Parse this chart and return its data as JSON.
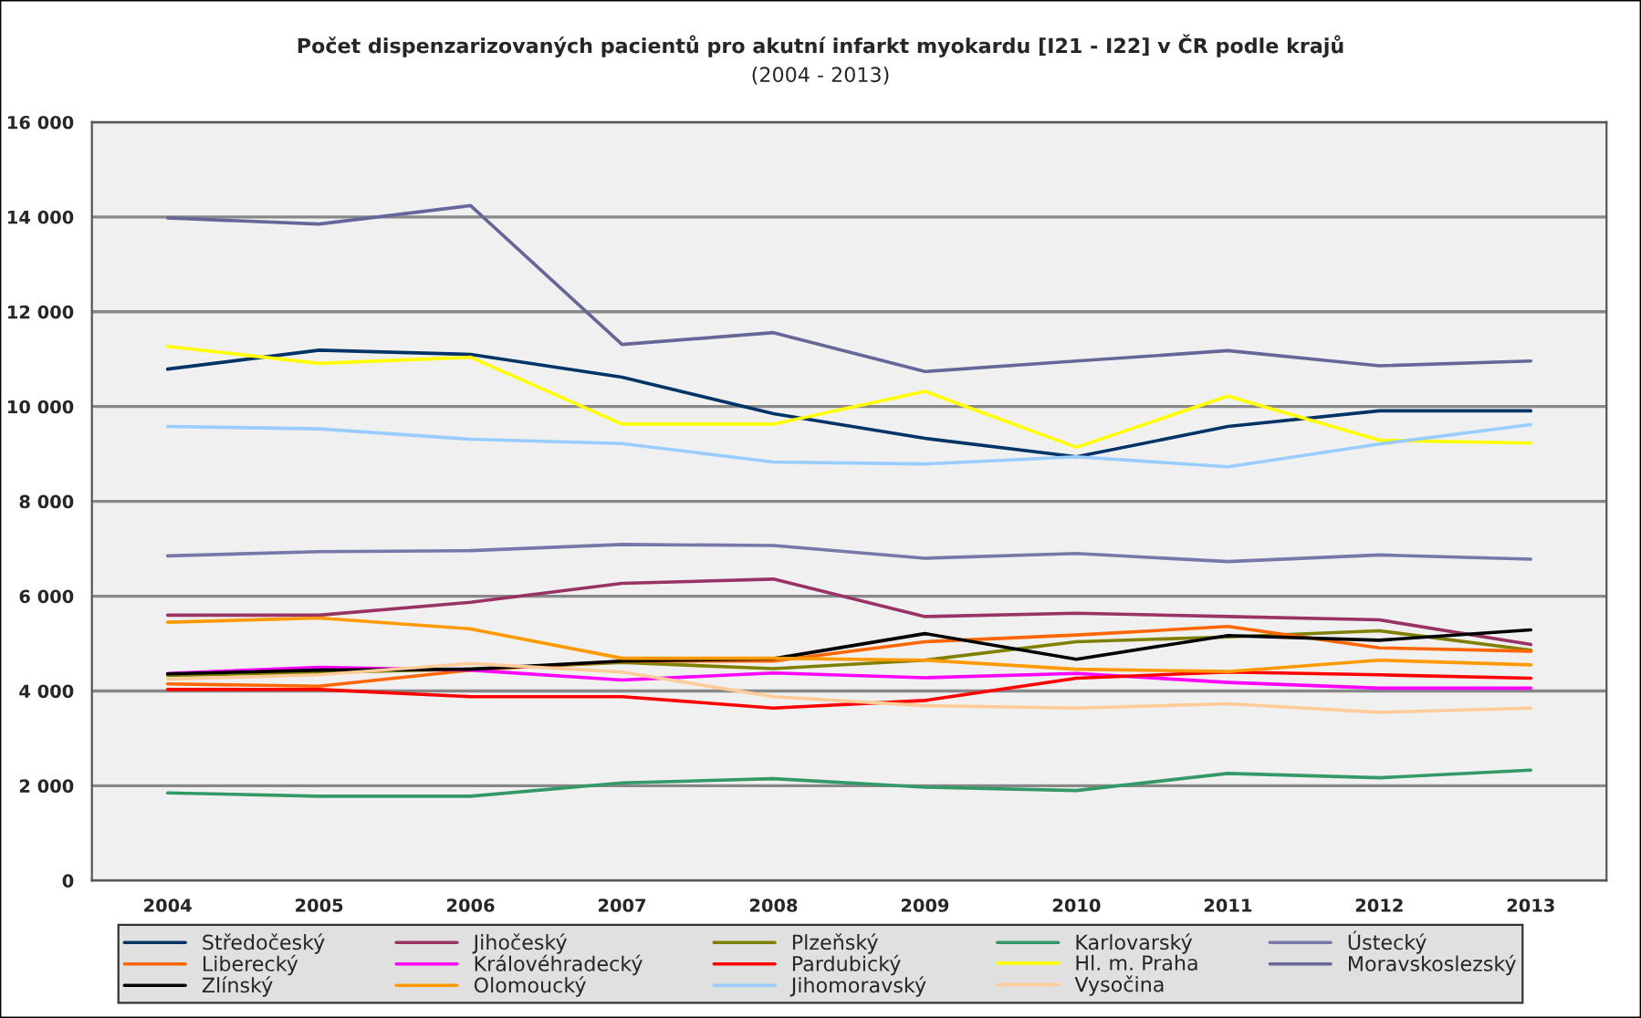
{
  "chart_data": {
    "type": "line",
    "title": "Počet dispenzarizovaných pacientů pro akutní infarkt myokardu [I21 - I22] v ČR podle krajů",
    "subtitle": "(2004 - 2013)",
    "categories": [
      "2004",
      "2005",
      "2006",
      "2007",
      "2008",
      "2009",
      "2010",
      "2011",
      "2012",
      "2013"
    ],
    "ylim": [
      0,
      16000
    ],
    "yticks": [
      0,
      {
        "value": 2000,
        "label": "2 000"
      },
      {
        "value": 4000,
        "label": "4 000"
      },
      {
        "value": 6000,
        "label": "6 000"
      },
      {
        "value": 8000,
        "label": "8 000"
      },
      {
        "value": 10000,
        "label": "10 000"
      },
      {
        "value": 12000,
        "label": "12 000"
      },
      {
        "value": 14000,
        "label": "14 000"
      },
      {
        "value": 16000,
        "label": "16 000"
      }
    ],
    "grid": "y",
    "legend": "bottom",
    "marker": "none",
    "line_style": "solid",
    "series": [
      {
        "name": "Středočeský",
        "color": "#003366",
        "values": [
          10790,
          11190,
          11100,
          10620,
          9850,
          9330,
          8940,
          9580,
          9910,
          9910
        ]
      },
      {
        "name": "Jihočeský",
        "color": "#993366",
        "values": [
          5600,
          5600,
          5870,
          6270,
          6360,
          5570,
          5640,
          5570,
          5500,
          4980
        ]
      },
      {
        "name": "Plzeňský",
        "color": "#808000",
        "values": [
          4330,
          4390,
          4460,
          4600,
          4470,
          4650,
          5040,
          5140,
          5270,
          4860
        ]
      },
      {
        "name": "Karlovarský",
        "color": "#339966",
        "values": [
          1850,
          1780,
          1780,
          2060,
          2150,
          1970,
          1900,
          2260,
          2170,
          2330
        ]
      },
      {
        "name": "Ústecký",
        "color": "#7777aa",
        "values": [
          6850,
          6940,
          6960,
          7090,
          7070,
          6800,
          6900,
          6730,
          6870,
          6780
        ]
      },
      {
        "name": "Liberecký",
        "color": "#ff6600",
        "values": [
          4150,
          4100,
          4440,
          4630,
          4630,
          5040,
          5180,
          5360,
          4910,
          4840
        ]
      },
      {
        "name": "Královéhradecký",
        "color": "#ff00ff",
        "values": [
          4370,
          4500,
          4440,
          4230,
          4380,
          4280,
          4370,
          4180,
          4060,
          4060
        ]
      },
      {
        "name": "Pardubický",
        "color": "#ff0000",
        "values": [
          4030,
          4030,
          3880,
          3880,
          3640,
          3800,
          4270,
          4400,
          4340,
          4270
        ]
      },
      {
        "name": "Hl. m. Praha",
        "color": "#ffff00",
        "values": [
          11270,
          10910,
          11040,
          9630,
          9630,
          10320,
          9140,
          10220,
          9290,
          9230
        ]
      },
      {
        "name": "Moravskoslezský",
        "color": "#666699",
        "values": [
          13980,
          13850,
          14240,
          11310,
          11560,
          10740,
          10960,
          11180,
          10860,
          10960
        ]
      },
      {
        "name": "Zlínský",
        "color": "#000000",
        "values": [
          4360,
          4440,
          4460,
          4630,
          4680,
          5210,
          4670,
          5170,
          5070,
          5290
        ]
      },
      {
        "name": "Olomoucký",
        "color": "#ff9900",
        "values": [
          5450,
          5540,
          5310,
          4690,
          4690,
          4650,
          4460,
          4410,
          4650,
          4550
        ]
      },
      {
        "name": "Jihomoravský",
        "color": "#99ccff",
        "values": [
          9580,
          9530,
          9310,
          9220,
          8830,
          8790,
          8940,
          8730,
          9210,
          9620
        ]
      },
      {
        "name": "Vysočina",
        "color": "#ffcc99",
        "values": [
          4250,
          4340,
          4580,
          4400,
          3880,
          3690,
          3640,
          3730,
          3550,
          3640
        ]
      }
    ]
  }
}
